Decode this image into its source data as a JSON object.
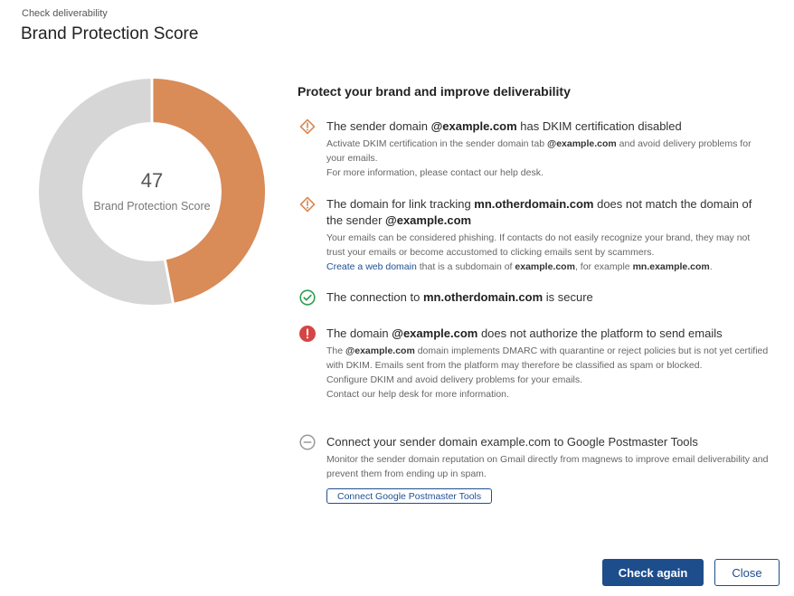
{
  "header": {
    "subtitle": "Check deliverability",
    "title": "Brand Protection Score"
  },
  "score": {
    "value": "47",
    "label": "Brand Protection Score",
    "percent": 47,
    "filled_color": "#D98B58",
    "empty_color": "#D6D6D6"
  },
  "panel": {
    "title": "Protect your brand and improve deliverability",
    "items": [
      {
        "status": "warning",
        "icon": "warning-diamond-icon",
        "main": [
          "The sender domain ",
          "@example.com",
          " has DKIM certification disabled"
        ],
        "desc1": [
          "Activate DKIM certification in the sender domain tab ",
          "@example.com",
          " and avoid delivery problems for your emails."
        ],
        "desc2": "For more information, please contact our help desk."
      },
      {
        "status": "warning",
        "icon": "warning-diamond-icon",
        "main": [
          "The domain for link tracking ",
          "mn.otherdomain.com",
          " does not match the domain of the sender ",
          "@example.com"
        ],
        "desc1": "Your emails can be considered phishing. If contacts do not easily recognize your brand, they may not trust your emails or become accustomed to clicking emails sent by scammers.",
        "desc2": [
          "Create a web domain",
          " that is a subdomain of ",
          "example.com",
          ", for example ",
          "mn.example.com",
          "."
        ]
      },
      {
        "status": "ok",
        "icon": "check-circle-icon",
        "main": [
          "The connection to ",
          "mn.otherdomain.com",
          " is secure"
        ]
      },
      {
        "status": "error",
        "icon": "error-circle-icon",
        "main": [
          "The domain ",
          "@example.com",
          " does not authorize the platform to send emails"
        ],
        "desc1": [
          "The ",
          "@example.com",
          " domain implements DMARC with quarantine or reject policies but is not yet certified with DKIM. Emails sent from the platform may therefore be classified as spam or blocked."
        ],
        "desc2": "Configure DKIM and avoid delivery problems for your emails.",
        "desc3": "Contact our help desk for more information."
      },
      {
        "status": "neutral",
        "icon": "minus-circle-icon",
        "main": "Connect your sender domain example.com to Google Postmaster Tools",
        "desc1": "Monitor the sender domain reputation on Gmail directly from magnews to improve email deliverability and prevent them from ending up in spam.",
        "button": "Connect Google Postmaster Tools"
      }
    ]
  },
  "footer": {
    "check_again": "Check again",
    "close": "Close"
  },
  "colors": {
    "warning": "#D98B58",
    "ok": "#2E9E4F",
    "error": "#D64545",
    "neutral": "#999999",
    "primary": "#1E4D8C"
  }
}
